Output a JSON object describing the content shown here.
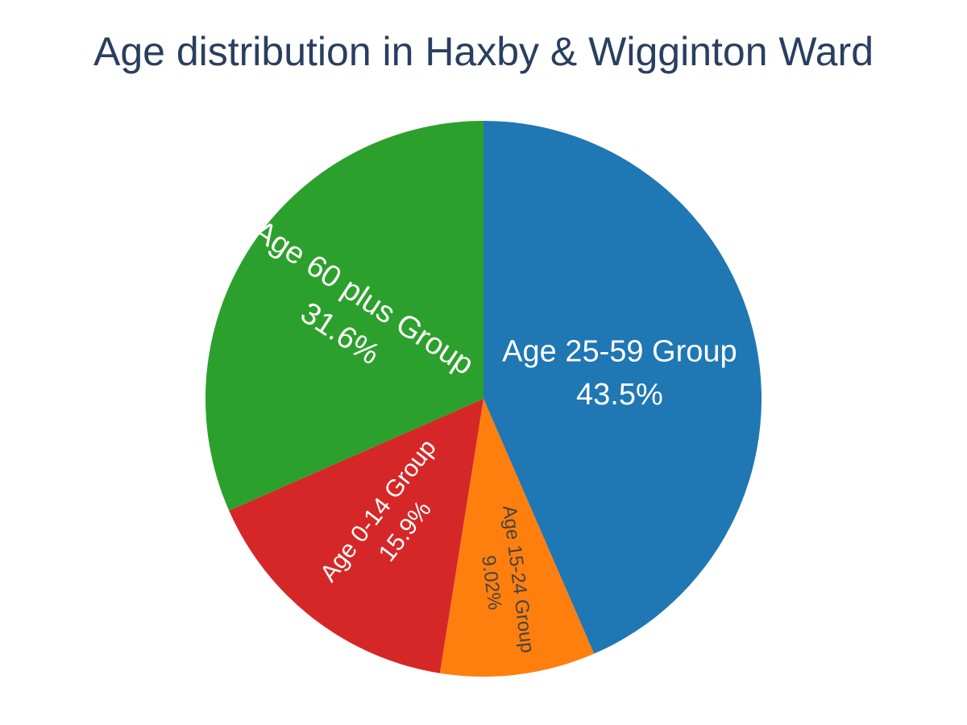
{
  "chart_data": {
    "type": "pie",
    "title": "Age distribution in Haxby & Wigginton Ward",
    "slices": [
      {
        "label": "Age 25-59 Group",
        "percent_label": "43.5%",
        "value": 43.5,
        "color": "#1f77b4",
        "text_color": "#ffffff"
      },
      {
        "label": "Age 15-24 Group",
        "percent_label": "9.02%",
        "value": 9.02,
        "color": "#ff7f0e",
        "text_color": "#444444"
      },
      {
        "label": "Age 0-14 Group",
        "percent_label": "15.9%",
        "value": 15.9,
        "color": "#d62728",
        "text_color": "#ffffff"
      },
      {
        "label": "Age 60 plus Group",
        "percent_label": "31.6%",
        "value": 31.6,
        "color": "#2ca02c",
        "text_color": "#ffffff"
      }
    ],
    "direction": "clockwise",
    "start": "12 o'clock",
    "legend": "none"
  }
}
